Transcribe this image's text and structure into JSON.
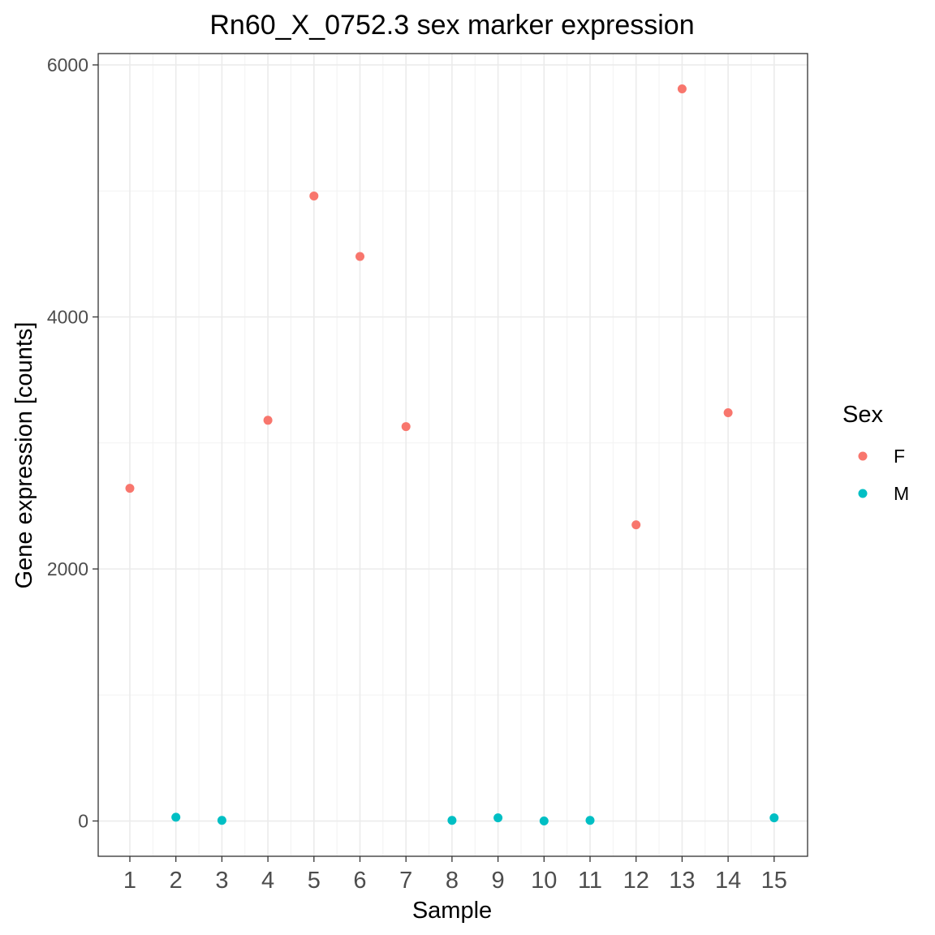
{
  "chart_data": {
    "type": "scatter",
    "title": "Rn60_X_0752.3 sex marker expression",
    "xlabel": "Sample",
    "ylabel": "Gene expression [counts]",
    "x_categories": [
      "1",
      "2",
      "3",
      "4",
      "5",
      "6",
      "7",
      "8",
      "9",
      "10",
      "11",
      "12",
      "13",
      "14",
      "15"
    ],
    "y_ticks": [
      0,
      2000,
      4000,
      6000
    ],
    "y_tick_labels": [
      "0",
      "2000",
      "4000",
      "6000"
    ],
    "ylim": [
      -280,
      6090
    ],
    "grid": true,
    "legend": {
      "title": "Sex",
      "placement": "right",
      "entries": [
        {
          "label": "F",
          "color": "#F8766D"
        },
        {
          "label": "M",
          "color": "#00BFC4"
        }
      ]
    },
    "points": [
      {
        "x": "1",
        "y": 2640,
        "sex": "F"
      },
      {
        "x": "2",
        "y": 30,
        "sex": "M"
      },
      {
        "x": "3",
        "y": 5,
        "sex": "M"
      },
      {
        "x": "4",
        "y": 3180,
        "sex": "F"
      },
      {
        "x": "5",
        "y": 4960,
        "sex": "F"
      },
      {
        "x": "6",
        "y": 4480,
        "sex": "F"
      },
      {
        "x": "7",
        "y": 3130,
        "sex": "F"
      },
      {
        "x": "8",
        "y": 5,
        "sex": "M"
      },
      {
        "x": "9",
        "y": 25,
        "sex": "M"
      },
      {
        "x": "10",
        "y": 0,
        "sex": "M"
      },
      {
        "x": "11",
        "y": 5,
        "sex": "M"
      },
      {
        "x": "12",
        "y": 2350,
        "sex": "F"
      },
      {
        "x": "13",
        "y": 5810,
        "sex": "F"
      },
      {
        "x": "14",
        "y": 3240,
        "sex": "F"
      },
      {
        "x": "15",
        "y": 25,
        "sex": "M"
      }
    ]
  }
}
